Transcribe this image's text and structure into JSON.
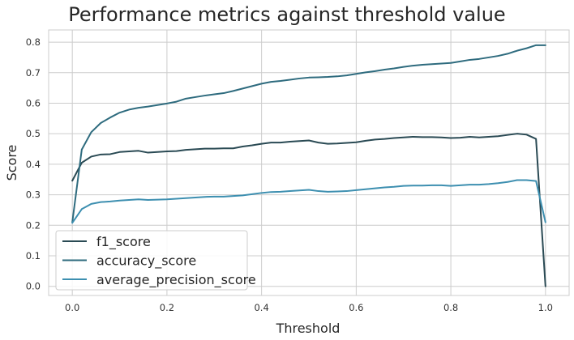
{
  "chart_data": {
    "type": "line",
    "title": "Performance metrics against threshold value",
    "xlabel": "Threshold",
    "ylabel": "Score",
    "xlim": [
      -0.05,
      1.05
    ],
    "ylim": [
      -0.03,
      0.84
    ],
    "xticks": [
      0.0,
      0.2,
      0.4,
      0.6,
      0.8,
      1.0
    ],
    "xtick_labels": [
      "0.0",
      "0.2",
      "0.4",
      "0.6",
      "0.8",
      "1.0"
    ],
    "yticks": [
      0.0,
      0.1,
      0.2,
      0.3,
      0.4,
      0.5,
      0.6,
      0.7,
      0.8
    ],
    "ytick_labels": [
      "0.0",
      "0.1",
      "0.2",
      "0.3",
      "0.4",
      "0.5",
      "0.6",
      "0.7",
      "0.8"
    ],
    "grid": true,
    "legend_position": "lower-left",
    "x": [
      0.0,
      0.02,
      0.04,
      0.06,
      0.08,
      0.1,
      0.12,
      0.14,
      0.16,
      0.18,
      0.2,
      0.22,
      0.24,
      0.26,
      0.28,
      0.3,
      0.32,
      0.34,
      0.36,
      0.38,
      0.4,
      0.42,
      0.44,
      0.46,
      0.48,
      0.5,
      0.52,
      0.54,
      0.56,
      0.58,
      0.6,
      0.62,
      0.64,
      0.66,
      0.68,
      0.7,
      0.72,
      0.74,
      0.76,
      0.78,
      0.8,
      0.82,
      0.84,
      0.86,
      0.88,
      0.9,
      0.92,
      0.94,
      0.96,
      0.98,
      1.0
    ],
    "series": [
      {
        "name": "f1_score",
        "color": "#2a4a54",
        "values": [
          0.346,
          0.405,
          0.425,
          0.432,
          0.433,
          0.44,
          0.442,
          0.444,
          0.438,
          0.44,
          0.442,
          0.443,
          0.447,
          0.449,
          0.451,
          0.451,
          0.452,
          0.452,
          0.458,
          0.462,
          0.467,
          0.471,
          0.471,
          0.474,
          0.476,
          0.478,
          0.471,
          0.467,
          0.468,
          0.47,
          0.472,
          0.477,
          0.481,
          0.483,
          0.486,
          0.488,
          0.49,
          0.489,
          0.489,
          0.488,
          0.486,
          0.487,
          0.49,
          0.488,
          0.49,
          0.492,
          0.496,
          0.5,
          0.497,
          0.483,
          0.0
        ]
      },
      {
        "name": "accuracy_score",
        "color": "#2e6b7e",
        "values": [
          0.21,
          0.448,
          0.505,
          0.535,
          0.553,
          0.569,
          0.579,
          0.585,
          0.589,
          0.594,
          0.599,
          0.605,
          0.615,
          0.62,
          0.625,
          0.629,
          0.633,
          0.64,
          0.648,
          0.656,
          0.664,
          0.67,
          0.673,
          0.677,
          0.681,
          0.684,
          0.685,
          0.686,
          0.688,
          0.691,
          0.696,
          0.701,
          0.705,
          0.71,
          0.714,
          0.719,
          0.723,
          0.726,
          0.728,
          0.73,
          0.732,
          0.737,
          0.742,
          0.745,
          0.75,
          0.755,
          0.762,
          0.772,
          0.78,
          0.79,
          0.79
        ]
      },
      {
        "name": "average_precision_score",
        "color": "#3d8fb0",
        "values": [
          0.208,
          0.253,
          0.27,
          0.276,
          0.278,
          0.281,
          0.283,
          0.285,
          0.283,
          0.284,
          0.285,
          0.287,
          0.289,
          0.291,
          0.293,
          0.294,
          0.294,
          0.296,
          0.298,
          0.302,
          0.306,
          0.309,
          0.31,
          0.312,
          0.314,
          0.316,
          0.312,
          0.31,
          0.311,
          0.312,
          0.315,
          0.318,
          0.321,
          0.324,
          0.326,
          0.329,
          0.33,
          0.33,
          0.331,
          0.331,
          0.329,
          0.331,
          0.333,
          0.333,
          0.335,
          0.338,
          0.342,
          0.348,
          0.348,
          0.345,
          0.21
        ]
      }
    ]
  }
}
